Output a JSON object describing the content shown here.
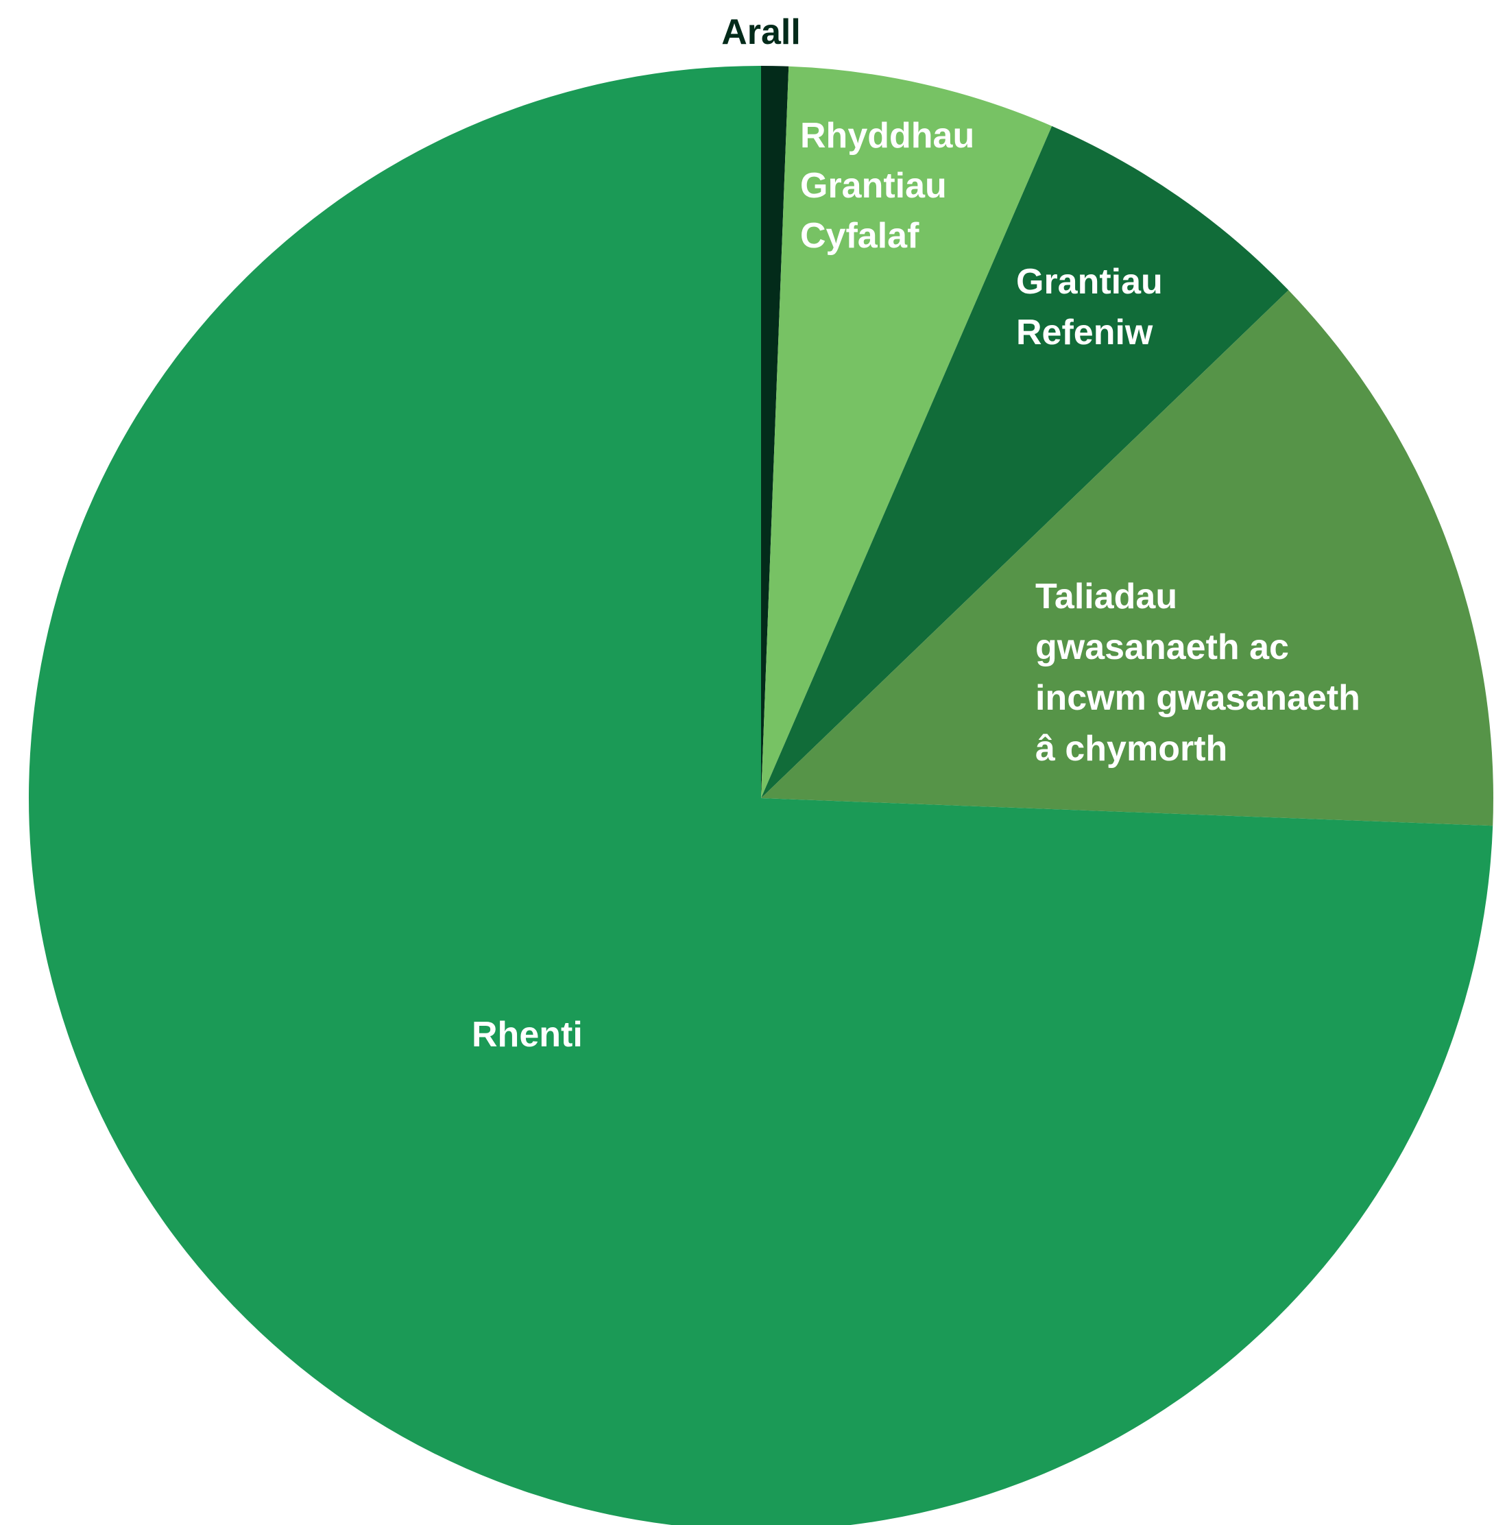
{
  "chart_data": {
    "type": "pie",
    "title": "",
    "slices": [
      {
        "label": "Arall",
        "value": 0.6,
        "color": "#032B1A",
        "label_color": "#032B1A"
      },
      {
        "label": "Rhyddhau Grantiau Cyfalaf",
        "value": 5.9,
        "color": "#77C264",
        "label_color": "#FFFFFF"
      },
      {
        "label": "Grantiau Refeniw",
        "value": 6.3,
        "color": "#116C39",
        "label_color": "#FFFFFF"
      },
      {
        "label": "Taliadau gwasanaeth ac incwm gwasanaeth â chymorth",
        "value": 12.8,
        "color": "#569448",
        "label_color": "#FFFFFF"
      },
      {
        "label": "Rhenti",
        "value": 74.4,
        "color": "#1B9A56",
        "label_color": "#FFFFFF"
      }
    ],
    "start_angle": "12 o'clock",
    "direction": "clockwise",
    "legend": "none"
  }
}
